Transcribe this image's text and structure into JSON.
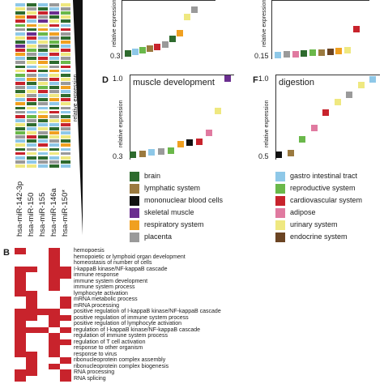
{
  "colors": {
    "brain": "#2e6b2e",
    "lymphatic": "#9b7a3f",
    "mononuclear": "#111111",
    "skeletal": "#6a2e8f",
    "respiratory": "#f0a020",
    "placenta": "#9a9a9a",
    "gastro": "#8ec8e8",
    "reproductive": "#6ab84a",
    "cardiovascular": "#c8232c",
    "adipose": "#e07aa0",
    "urinary": "#efe880",
    "endocrine": "#6b4423",
    "heatmap_red": "#c8232c"
  },
  "panel_a": {
    "mirnas": [
      "hsa-miR-142-3p",
      "hsa-miR-150",
      "hsa-miR-155",
      "hsa-miR-146a",
      "hsa-miR-150*"
    ],
    "ylabel": "relative expression",
    "grid_rows": [
      [
        "gastro",
        "brain",
        "gastro",
        "placenta",
        "urinary"
      ],
      [
        "urinary",
        "placenta",
        "brain",
        "gastro",
        "placenta"
      ],
      [
        "brain",
        "urinary",
        "cardiovascular",
        "skeletal",
        "reproductive"
      ],
      [
        "respiratory",
        "cardiovascular",
        "placenta",
        "brain",
        "urinary"
      ],
      [
        "cardiovascular",
        "gastro",
        "skeletal",
        "urinary",
        "brain"
      ],
      [
        "reproductive",
        "respiratory",
        "urinary",
        "cardiovascular",
        "gastro"
      ],
      [
        "placenta",
        "brain",
        "respiratory",
        "gastro",
        "cardiovascular"
      ],
      [
        "gastro",
        "skeletal",
        "reproductive",
        "respiratory",
        "placenta"
      ],
      [
        "urinary",
        "cardiovascular",
        "gastro",
        "placenta",
        "brain"
      ],
      [
        "brain",
        "gastro",
        "urinary",
        "reproductive",
        "respiratory"
      ],
      [
        "skeletal",
        "urinary",
        "placenta",
        "brain",
        "gastro"
      ],
      [
        "cardiovascular",
        "reproductive",
        "brain",
        "urinary",
        "cardiovascular"
      ],
      [
        "respiratory",
        "placenta",
        "gastro",
        "cardiovascular",
        "urinary"
      ],
      [
        "gastro",
        "brain",
        "cardiovascular",
        "gastro",
        "placenta"
      ],
      [
        "placenta",
        "urinary",
        "respiratory",
        "brain",
        "reproductive"
      ],
      [
        "brain",
        "gastro",
        "urinary",
        "placenta",
        "cardiovascular"
      ],
      [
        "urinary",
        "cardiovascular",
        "brain",
        "respiratory",
        "gastro"
      ],
      [
        "reproductive",
        "placenta",
        "gastro",
        "urinary",
        "brain"
      ],
      [
        "gastro",
        "respiratory",
        "placenta",
        "cardiovascular",
        "urinary"
      ],
      [
        "cardiovascular",
        "brain",
        "urinary",
        "gastro",
        "placenta"
      ],
      [
        "placenta",
        "gastro",
        "reproductive",
        "brain",
        "respiratory"
      ],
      [
        "brain",
        "urinary",
        "cardiovascular",
        "placenta",
        "gastro"
      ],
      [
        "urinary",
        "placenta",
        "gastro",
        "urinary",
        "brain"
      ],
      [
        "gastro",
        "cardiovascular",
        "brain",
        "respiratory",
        "cardiovascular"
      ],
      [
        "respiratory",
        "brain",
        "placenta",
        "gastro",
        "urinary"
      ],
      [
        "brain",
        "urinary",
        "gastro",
        "brain",
        "placenta"
      ],
      [
        "placenta",
        "gastro",
        "urinary",
        "cardiovascular",
        "gastro"
      ],
      [
        "cardiovascular",
        "reproductive",
        "respiratory",
        "placenta",
        "brain"
      ],
      [
        "gastro",
        "placenta",
        "brain",
        "urinary",
        "respiratory"
      ],
      [
        "urinary",
        "brain",
        "gastro",
        "gastro",
        "cardiovascular"
      ],
      [
        "brain",
        "gastro",
        "urinary",
        "brain",
        "placenta"
      ],
      [
        "reproductive",
        "urinary",
        "placenta",
        "respiratory",
        "gastro"
      ],
      [
        "placenta",
        "cardiovascular",
        "brain",
        "urinary",
        "urinary"
      ],
      [
        "gastro",
        "brain",
        "gastro",
        "placenta",
        "brain"
      ],
      [
        "urinary",
        "gastro",
        "cardiovascular",
        "gastro",
        "respiratory"
      ],
      [
        "brain",
        "placenta",
        "urinary",
        "brain",
        "gastro"
      ],
      [
        "cardiovascular",
        "urinary",
        "gastro",
        "urinary",
        "placenta"
      ],
      [
        "gastro",
        "brain",
        "brain",
        "gastro",
        "urinary"
      ],
      [
        "placenta",
        "gastro",
        "placenta",
        "placenta",
        "brain"
      ],
      [
        "urinary",
        "urinary",
        "gastro",
        "brain",
        "gastro"
      ]
    ]
  },
  "panel_c": {
    "y_top": "",
    "y_bottom": "0.3",
    "points": [
      {
        "tissue": "brain",
        "value": 0.3
      },
      {
        "tissue": "gastro",
        "value": 0.31
      },
      {
        "tissue": "reproductive",
        "value": 0.32
      },
      {
        "tissue": "lymphatic",
        "value": 0.335
      },
      {
        "tissue": "cardiovascular",
        "value": 0.345
      },
      {
        "tissue": "placenta",
        "value": 0.36
      },
      {
        "tissue": "brain",
        "value": 0.4
      },
      {
        "tissue": "respiratory",
        "value": 0.44
      },
      {
        "tissue": "urinary",
        "value": 0.55
      },
      {
        "tissue": "placenta",
        "value": 0.6
      }
    ]
  },
  "panel_e": {
    "y_bottom": "0.15",
    "points": [
      {
        "tissue": "gastro",
        "value": 0.15
      },
      {
        "tissue": "placenta",
        "value": 0.151
      },
      {
        "tissue": "adipose",
        "value": 0.152
      },
      {
        "tissue": "brain",
        "value": 0.153
      },
      {
        "tissue": "reproductive",
        "value": 0.154
      },
      {
        "tissue": "lymphatic",
        "value": 0.155
      },
      {
        "tissue": "endocrine",
        "value": 0.156
      },
      {
        "tissue": "respiratory",
        "value": 0.158
      },
      {
        "tissue": "urinary",
        "value": 0.16
      },
      {
        "tissue": "cardiovascular",
        "value": 0.2
      }
    ]
  },
  "panel_d": {
    "letter": "D",
    "title": "muscle development",
    "y_top": "1.0",
    "y_bottom": "0.3",
    "ylabel": "relative expression",
    "points": [
      {
        "tissue": "brain",
        "value": 0.3
      },
      {
        "tissue": "lymphatic",
        "value": 0.31
      },
      {
        "tissue": "gastro",
        "value": 0.32
      },
      {
        "tissue": "placenta",
        "value": 0.33
      },
      {
        "tissue": "reproductive",
        "value": 0.34
      },
      {
        "tissue": "respiratory",
        "value": 0.4
      },
      {
        "tissue": "mononuclear",
        "value": 0.41
      },
      {
        "tissue": "cardiovascular",
        "value": 0.42
      },
      {
        "tissue": "adipose",
        "value": 0.5
      },
      {
        "tissue": "urinary",
        "value": 0.7
      },
      {
        "tissue": "skeletal",
        "value": 1.0
      }
    ]
  },
  "panel_f": {
    "letter": "F",
    "title": "digestion",
    "y_top": "1.0",
    "y_bottom": "0.5",
    "ylabel": "relative expression",
    "points": [
      {
        "tissue": "mononuclear",
        "value": 0.5
      },
      {
        "tissue": "lymphatic",
        "value": 0.51
      },
      {
        "tissue": "reproductive",
        "value": 0.6
      },
      {
        "tissue": "adipose",
        "value": 0.68
      },
      {
        "tissue": "cardiovascular",
        "value": 0.78
      },
      {
        "tissue": "urinary",
        "value": 0.85
      },
      {
        "tissue": "placenta",
        "value": 0.9
      },
      {
        "tissue": "urinary",
        "value": 0.96
      },
      {
        "tissue": "gastro",
        "value": 1.0
      }
    ]
  },
  "legend": [
    {
      "key": "brain",
      "label": "brain"
    },
    {
      "key": "gastro",
      "label": "gastro intestinal tract"
    },
    {
      "key": "lymphatic",
      "label": "lymphatic system"
    },
    {
      "key": "reproductive",
      "label": "reproductive system"
    },
    {
      "key": "mononuclear",
      "label": "mononuclear blood cells"
    },
    {
      "key": "cardiovascular",
      "label": "cardiovascular system"
    },
    {
      "key": "skeletal",
      "label": "skeletal muscle"
    },
    {
      "key": "adipose",
      "label": "adipose"
    },
    {
      "key": "respiratory",
      "label": "respiratory system"
    },
    {
      "key": "urinary",
      "label": "urinary system"
    },
    {
      "key": "placenta",
      "label": "placenta"
    },
    {
      "key": "endocrine",
      "label": "endocrine system"
    }
  ],
  "panel_b": {
    "letter": "B",
    "terms": [
      "hemopoesis",
      "hemopoietic or lymphoid organ development",
      "homeostasis of number of cells",
      "I-kappaB kinase/NF-kappaB cascade",
      "immune response",
      "immune system development",
      "immune system process",
      "lymphocyte activation",
      "mRNA metabolic process",
      "mRNA processing",
      "positive regulation of I-kappaB kinase/NF-kappaB cascade",
      "positive regulation of immune system process",
      "positive regulation of lymphocyte activation",
      "regulation of I-kappaB kinase/NF-kappaB cascade",
      "regulation of immune system process",
      "regulation of T cell activation",
      "response to other organism",
      "response to virus",
      "ribonucleoprotein complex assembly",
      "ribonucleoprotein complex biogenesis",
      "RNA processing",
      "RNA splicing"
    ],
    "matrix": [
      [
        1,
        0,
        0,
        1,
        0
      ],
      [
        0,
        0,
        0,
        1,
        0
      ],
      [
        0,
        0,
        0,
        1,
        0
      ],
      [
        1,
        1,
        0,
        1,
        1
      ],
      [
        1,
        0,
        0,
        1,
        1
      ],
      [
        1,
        0,
        0,
        1,
        0
      ],
      [
        1,
        0,
        0,
        1,
        0
      ],
      [
        1,
        1,
        0,
        0,
        0
      ],
      [
        0,
        1,
        0,
        0,
        1
      ],
      [
        0,
        1,
        0,
        0,
        1
      ],
      [
        1,
        1,
        1,
        1,
        0
      ],
      [
        1,
        1,
        0,
        1,
        1
      ],
      [
        1,
        0,
        0,
        1,
        0
      ],
      [
        1,
        1,
        1,
        0,
        1
      ],
      [
        1,
        0,
        0,
        1,
        0
      ],
      [
        1,
        0,
        0,
        1,
        1
      ],
      [
        1,
        0,
        0,
        1,
        0
      ],
      [
        1,
        1,
        0,
        1,
        0
      ],
      [
        0,
        1,
        0,
        0,
        1
      ],
      [
        0,
        1,
        0,
        1,
        0
      ],
      [
        1,
        1,
        0,
        0,
        1
      ],
      [
        1,
        0,
        0,
        0,
        1
      ]
    ]
  }
}
